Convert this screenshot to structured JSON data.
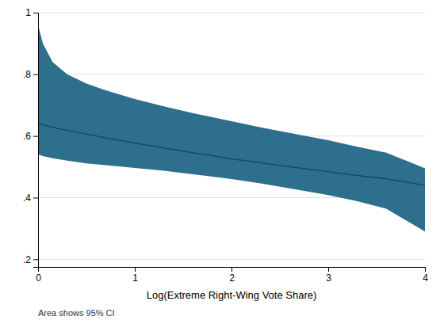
{
  "chart_data": {
    "type": "line",
    "x": [
      0.0,
      0.05,
      0.15,
      0.3,
      0.5,
      0.7,
      1.0,
      1.3,
      1.6,
      2.0,
      2.3,
      2.6,
      3.0,
      3.3,
      3.6,
      4.0
    ],
    "series": [
      {
        "type": "band",
        "color": "#2e6f8e",
        "upper": [
          0.96,
          0.9,
          0.84,
          0.8,
          0.77,
          0.748,
          0.72,
          0.696,
          0.674,
          0.648,
          0.628,
          0.61,
          0.586,
          0.565,
          0.546,
          0.495
        ],
        "lower": [
          0.54,
          0.535,
          0.528,
          0.52,
          0.511,
          0.505,
          0.496,
          0.487,
          0.476,
          0.46,
          0.446,
          0.43,
          0.408,
          0.388,
          0.364,
          0.29
        ]
      },
      {
        "type": "line",
        "color": "#1a4a5e",
        "values": [
          0.64,
          0.636,
          0.628,
          0.618,
          0.606,
          0.594,
          0.577,
          0.561,
          0.546,
          0.526,
          0.513,
          0.5,
          0.484,
          0.472,
          0.461,
          0.44
        ]
      }
    ],
    "xlabel": "Log(Extreme Right-Wing Vote Share)",
    "annotation": "Area shows 95% CI",
    "xlim": [
      0,
      4
    ],
    "ylim": [
      0.175,
      1.0
    ],
    "xticks": [
      0,
      1,
      2,
      3,
      4
    ],
    "yticks": [
      {
        "value": 0.2,
        "label": ".2"
      },
      {
        "value": 0.4,
        "label": ".4"
      },
      {
        "value": 0.6,
        "label": ".6"
      },
      {
        "value": 0.8,
        "label": ".8"
      },
      1
    ],
    "grid": "y"
  }
}
